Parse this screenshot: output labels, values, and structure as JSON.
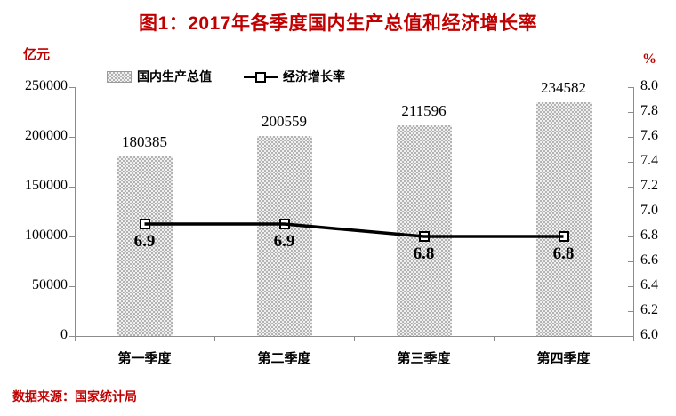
{
  "title": "图1：2017年各季度国内生产总值和经济增长率",
  "left_axis_unit": "亿元",
  "right_axis_unit": "%",
  "source_note": "数据来源：国家统计局",
  "legend": {
    "bar_series_label": "国内生产总值",
    "line_series_label": "经济增长率"
  },
  "colors": {
    "accent_red": "#c00000",
    "axis_gray": "#8c8c8c",
    "bar_gray": "#b3b3b3",
    "line_black": "#000000"
  },
  "chart_data": {
    "type": "bar",
    "subtype": "bar+line combo, line on secondary axis",
    "title": "图1：2017年各季度国内生产总值和经济增长率",
    "categories": [
      "第一季度",
      "第二季度",
      "第三季度",
      "第四季度"
    ],
    "series": [
      {
        "name": "国内生产总值",
        "type": "bar",
        "axis": "left",
        "values": [
          180385,
          200559,
          211596,
          234582
        ]
      },
      {
        "name": "经济增长率",
        "type": "line",
        "axis": "right",
        "values": [
          6.9,
          6.9,
          6.8,
          6.8
        ]
      }
    ],
    "bar_labels": [
      "180385",
      "200559",
      "211596",
      "234582"
    ],
    "line_labels": [
      "6.9",
      "6.9",
      "6.8",
      "6.8"
    ],
    "left_axis": {
      "label": "亿元",
      "min": 0,
      "max": 250000,
      "step": 50000,
      "tick_labels": [
        "0",
        "50000",
        "100000",
        "150000",
        "200000",
        "250000"
      ]
    },
    "right_axis": {
      "label": "%",
      "min": 6.0,
      "max": 8.0,
      "step": 0.2,
      "tick_labels": [
        "6.0",
        "6.2",
        "6.4",
        "6.6",
        "6.8",
        "7.0",
        "7.2",
        "7.4",
        "7.6",
        "7.8",
        "8.0"
      ]
    },
    "grid": false,
    "legend_position": "top"
  }
}
